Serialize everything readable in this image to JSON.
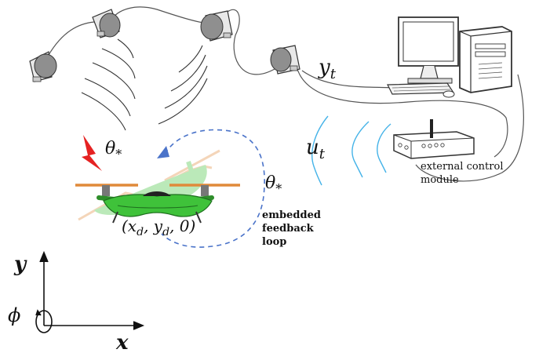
{
  "labels": {
    "y_t": "y",
    "y_t_sub": "t",
    "u_t": "u",
    "u_t_sub": "t",
    "theta_top": "θ",
    "theta_top_sub": "*",
    "theta_right": "θ",
    "theta_right_sub": "*",
    "position": "(x",
    "position_d1": "d",
    "position_mid": ", y",
    "position_d2": "d",
    "position_end": ", 0)",
    "external_line1": "external control",
    "external_line2": "module",
    "feedback_line1": "embedded",
    "feedback_line2": "feedback",
    "feedback_line3": "loop",
    "axis_y": "y",
    "axis_x": "x",
    "axis_phi": "ϕ"
  },
  "colors": {
    "wave_blue": "#45b3e8",
    "loop_dash": "#4a73c9",
    "drone_green": "#3fc23a",
    "drone_dark": "#1e6e1e",
    "propeller": "#e08a3a",
    "lightning": "#e52222",
    "camera_body": "#9a9a9a"
  },
  "icons": [
    "camera-icon",
    "computer-icon",
    "router-icon",
    "drone-icon",
    "lightning-icon",
    "arrow-icon"
  ]
}
